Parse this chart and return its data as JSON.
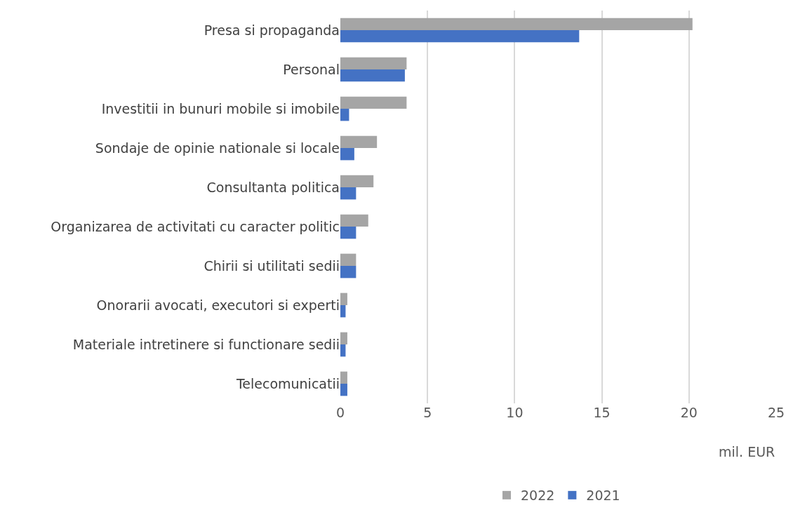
{
  "chart_data": {
    "type": "bar",
    "orientation": "horizontal",
    "xlabel": "mil. EUR",
    "categories": [
      "Presa si propaganda",
      "Personal",
      "Investitii in bunuri mobile si imobile",
      "Sondaje de opinie nationale si locale",
      "Consultanta politica",
      "Organizarea de activitati cu caracter politic",
      "Chirii si utilitati sedii",
      "Onorarii avocati, executori si experti",
      "Materiale intretinere si functionare sedii",
      "Telecomunicatii"
    ],
    "series": [
      {
        "name": "2022",
        "color": "#a5a5a5",
        "values": [
          20.2,
          3.8,
          3.8,
          2.1,
          1.9,
          1.6,
          0.9,
          0.4,
          0.4,
          0.4
        ]
      },
      {
        "name": "2021",
        "color": "#4472c4",
        "values": [
          13.7,
          3.7,
          0.5,
          0.8,
          0.9,
          0.9,
          0.9,
          0.3,
          0.3,
          0.4
        ]
      }
    ],
    "xlim": [
      0,
      25
    ],
    "xticks": [
      0,
      5,
      10,
      15,
      20,
      25
    ],
    "grid": "x",
    "legend": "bottom"
  }
}
